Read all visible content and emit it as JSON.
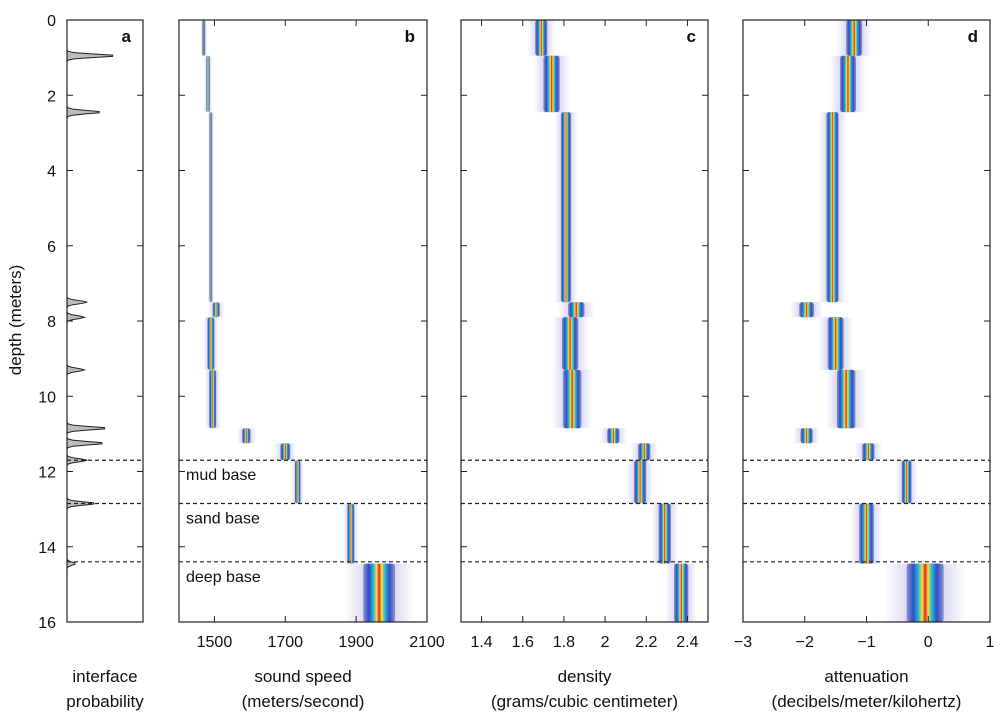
{
  "chart_data": {
    "type": "line",
    "shared_y": {
      "label": "depth (meters)",
      "range": [
        0,
        16
      ],
      "ticks": [
        0,
        2,
        4,
        6,
        8,
        10,
        12,
        14,
        16
      ],
      "tick_labels": [
        "0",
        "2",
        "4",
        "6",
        "8",
        "10",
        "12",
        "14",
        "16"
      ],
      "inverted": true
    },
    "boundaries": [
      {
        "name": "mud base",
        "depth": 11.7
      },
      {
        "name": "sand base",
        "depth": 12.85
      },
      {
        "name": "deep base",
        "depth": 14.4
      }
    ],
    "panels": [
      {
        "id": "a",
        "letter": "a",
        "xlabel_line1": "interface",
        "xlabel_line2": "probability",
        "peaks": [
          {
            "depth": 0.95,
            "amplitude": 0.85
          },
          {
            "depth": 2.45,
            "amplitude": 0.6
          },
          {
            "depth": 7.5,
            "amplitude": 0.35
          },
          {
            "depth": 7.9,
            "amplitude": 0.3
          },
          {
            "depth": 9.3,
            "amplitude": 0.3
          },
          {
            "depth": 10.85,
            "amplitude": 0.7
          },
          {
            "depth": 11.25,
            "amplitude": 0.65
          },
          {
            "depth": 11.7,
            "amplitude": 0.35
          },
          {
            "depth": 12.85,
            "amplitude": 0.5
          },
          {
            "depth": 14.45,
            "amplitude": 0.15
          }
        ]
      },
      {
        "id": "b",
        "letter": "b",
        "xlabel_line1": "sound speed",
        "xlabel_line2": "(meters/second)",
        "xlim": [
          1400,
          2100
        ],
        "xticks": [
          1500,
          1700,
          1900,
          2100
        ],
        "xtick_labels": [
          "1500",
          "1700",
          "1900",
          "2100"
        ],
        "profile": [
          {
            "top": 0.0,
            "bottom": 0.95,
            "value": 1470,
            "spread": 4
          },
          {
            "top": 0.95,
            "bottom": 2.45,
            "value": 1482,
            "spread": 5
          },
          {
            "top": 2.45,
            "bottom": 7.5,
            "value": 1490,
            "spread": 4
          },
          {
            "top": 7.5,
            "bottom": 7.9,
            "value": 1505,
            "spread": 10
          },
          {
            "top": 7.9,
            "bottom": 9.3,
            "value": 1490,
            "spread": 10
          },
          {
            "top": 9.3,
            "bottom": 10.85,
            "value": 1495,
            "spread": 10
          },
          {
            "top": 10.85,
            "bottom": 11.25,
            "value": 1590,
            "spread": 12
          },
          {
            "top": 11.25,
            "bottom": 11.7,
            "value": 1700,
            "spread": 14
          },
          {
            "top": 11.7,
            "bottom": 12.85,
            "value": 1735,
            "spread": 8
          },
          {
            "top": 12.85,
            "bottom": 14.45,
            "value": 1885,
            "spread": 10
          },
          {
            "top": 14.45,
            "bottom": 16.0,
            "value": 1965,
            "spread": 45
          }
        ]
      },
      {
        "id": "c",
        "letter": "c",
        "xlabel_line1": "density",
        "xlabel_line2": "(grams/cubic centimeter)",
        "xlim": [
          1.3,
          2.5
        ],
        "xticks": [
          1.4,
          1.6,
          1.8,
          2.0,
          2.2,
          2.4
        ],
        "xtick_labels": [
          "1.4",
          "1.6",
          "1.8",
          "2",
          "2.2",
          "2.4"
        ],
        "profile": [
          {
            "top": 0.0,
            "bottom": 0.95,
            "value": 1.69,
            "spread": 0.03
          },
          {
            "top": 0.95,
            "bottom": 2.45,
            "value": 1.74,
            "spread": 0.04
          },
          {
            "top": 2.45,
            "bottom": 7.5,
            "value": 1.81,
            "spread": 0.025
          },
          {
            "top": 7.5,
            "bottom": 7.9,
            "value": 1.86,
            "spread": 0.04
          },
          {
            "top": 7.9,
            "bottom": 9.3,
            "value": 1.83,
            "spread": 0.04
          },
          {
            "top": 9.3,
            "bottom": 10.85,
            "value": 1.84,
            "spread": 0.045
          },
          {
            "top": 10.85,
            "bottom": 11.25,
            "value": 2.04,
            "spread": 0.03
          },
          {
            "top": 11.25,
            "bottom": 11.7,
            "value": 2.19,
            "spread": 0.03
          },
          {
            "top": 11.7,
            "bottom": 12.85,
            "value": 2.17,
            "spread": 0.03
          },
          {
            "top": 12.85,
            "bottom": 14.45,
            "value": 2.29,
            "spread": 0.03
          },
          {
            "top": 14.45,
            "bottom": 16.0,
            "value": 2.37,
            "spread": 0.035
          }
        ]
      },
      {
        "id": "d",
        "letter": "d",
        "xlabel_line1": "attenuation",
        "xlabel_line2": "(decibels/meter/kilohertz)",
        "xlim": [
          -3,
          1
        ],
        "xticks": [
          -3,
          -2,
          -1,
          0,
          1
        ],
        "xtick_labels": [
          "−3",
          "−2",
          "−1",
          "0",
          "1"
        ],
        "profile": [
          {
            "top": 0.0,
            "bottom": 0.95,
            "value": -1.2,
            "spread": 0.13
          },
          {
            "top": 0.95,
            "bottom": 2.45,
            "value": -1.3,
            "spread": 0.13
          },
          {
            "top": 2.45,
            "bottom": 7.5,
            "value": -1.55,
            "spread": 0.1
          },
          {
            "top": 7.5,
            "bottom": 7.9,
            "value": -1.97,
            "spread": 0.12
          },
          {
            "top": 7.9,
            "bottom": 9.3,
            "value": -1.5,
            "spread": 0.13
          },
          {
            "top": 9.3,
            "bottom": 10.85,
            "value": -1.33,
            "spread": 0.15
          },
          {
            "top": 10.85,
            "bottom": 11.25,
            "value": -1.97,
            "spread": 0.1
          },
          {
            "top": 11.25,
            "bottom": 11.7,
            "value": -0.97,
            "spread": 0.1
          },
          {
            "top": 11.7,
            "bottom": 12.85,
            "value": -0.35,
            "spread": 0.08
          },
          {
            "top": 12.85,
            "bottom": 14.45,
            "value": -1.0,
            "spread": 0.12
          },
          {
            "top": 14.45,
            "bottom": 16.0,
            "value": -0.05,
            "spread": 0.3
          }
        ]
      }
    ]
  }
}
